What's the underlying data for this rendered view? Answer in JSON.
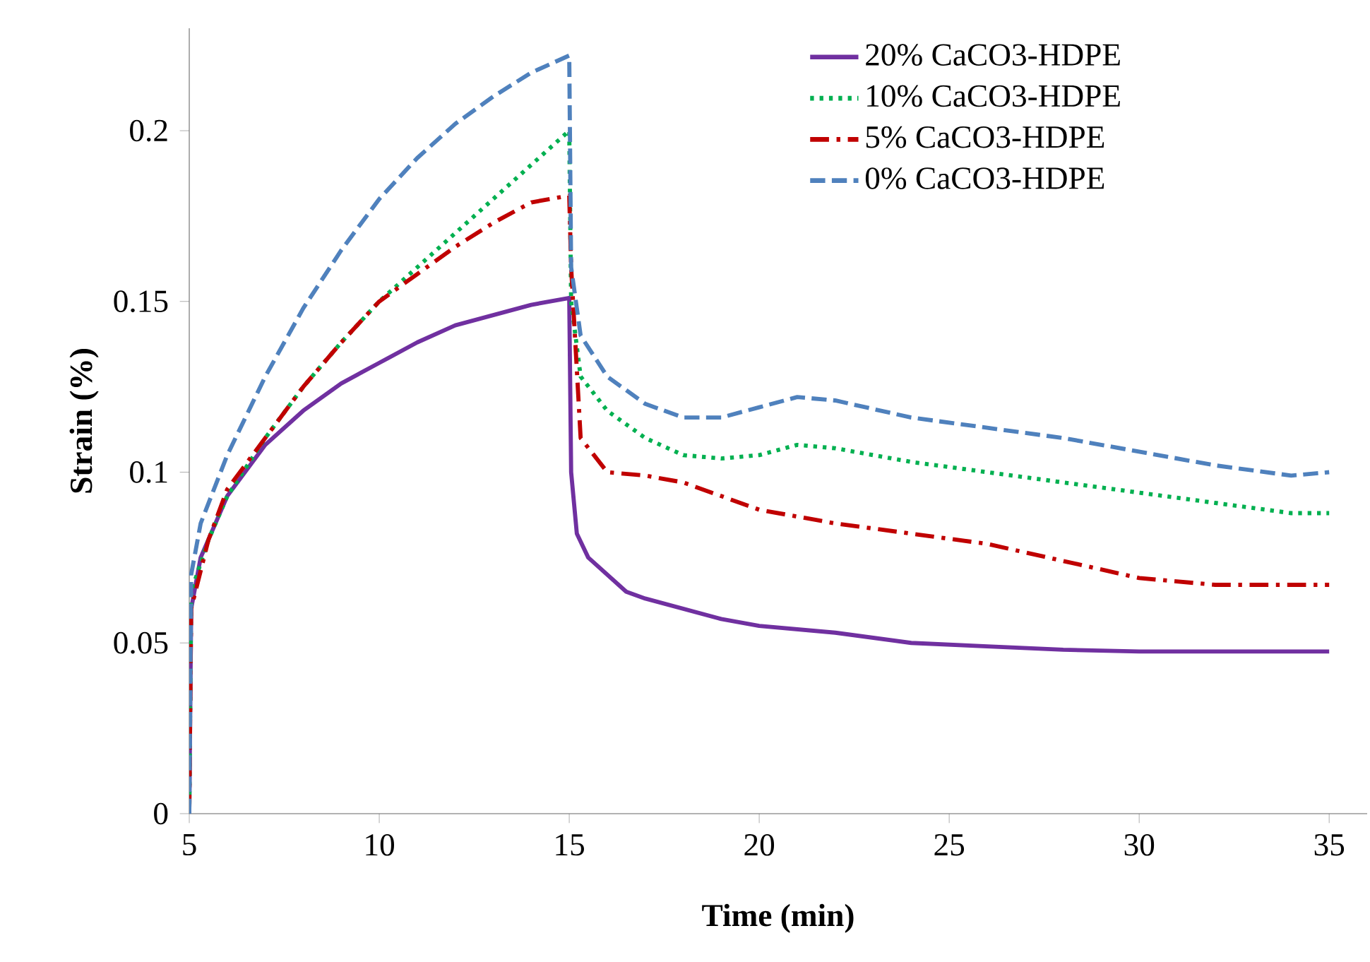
{
  "chart_data": {
    "type": "line",
    "xlabel": "**Time (min)**",
    "ylabel": "**Strain (%)**",
    "xlim": [
      5,
      36
    ],
    "xticks": [
      5,
      10,
      15,
      20,
      25,
      30,
      35
    ],
    "ylim": [
      0,
      0.23
    ],
    "yticks": [
      0,
      0.05,
      0.1,
      0.15,
      0.2
    ],
    "grid": false,
    "legend": "top right",
    "marker": "none",
    "series": [
      {
        "name": "20% CaCO3-HDPE",
        "color": "#7030a0",
        "line_style": "solid",
        "x": [
          5,
          5.05,
          5.3,
          6,
          7,
          8,
          9,
          10,
          11,
          12,
          13,
          14,
          15,
          15.05,
          15.2,
          15.5,
          16,
          16.5,
          17,
          18,
          19,
          20,
          22,
          24,
          26,
          28,
          30,
          32,
          35
        ],
        "values": [
          0,
          0.06,
          0.075,
          0.093,
          0.108,
          0.118,
          0.126,
          0.132,
          0.138,
          0.143,
          0.146,
          0.149,
          0.151,
          0.1,
          0.082,
          0.075,
          0.07,
          0.065,
          0.063,
          0.06,
          0.057,
          0.055,
          0.053,
          0.05,
          0.049,
          0.048,
          0.0475,
          0.0475,
          0.0475
        ]
      },
      {
        "name": "10%  CaCO3-HDPE",
        "color": "#00b050",
        "line_style": "dotted",
        "x": [
          5,
          5.05,
          5.5,
          6,
          7,
          8,
          9,
          10,
          11,
          12,
          13,
          14,
          15,
          15.05,
          15.3,
          16,
          17,
          18,
          19,
          20,
          21,
          22,
          24,
          26,
          28,
          30,
          32,
          34,
          35
        ],
        "values": [
          0,
          0.065,
          0.08,
          0.093,
          0.11,
          0.125,
          0.138,
          0.15,
          0.16,
          0.17,
          0.18,
          0.19,
          0.2,
          0.15,
          0.128,
          0.118,
          0.11,
          0.105,
          0.104,
          0.105,
          0.108,
          0.107,
          0.103,
          0.1,
          0.097,
          0.094,
          0.091,
          0.088,
          0.088
        ]
      },
      {
        "name": "5% CaCO3-HDPE",
        "color": "#c00000",
        "line_style": "dashdotted",
        "x": [
          5,
          5.05,
          5.5,
          6,
          7,
          8,
          9,
          10,
          11,
          12,
          13,
          14,
          15,
          15.05,
          15.3,
          16,
          17,
          18,
          19,
          20,
          22,
          24,
          26,
          28,
          30,
          32,
          35
        ],
        "values": [
          0,
          0.06,
          0.08,
          0.095,
          0.11,
          0.125,
          0.138,
          0.15,
          0.158,
          0.166,
          0.173,
          0.179,
          0.181,
          0.16,
          0.11,
          0.1,
          0.099,
          0.097,
          0.093,
          0.089,
          0.085,
          0.082,
          0.079,
          0.074,
          0.069,
          0.067,
          0.067
        ]
      },
      {
        "name": "0% CaCO3-HDPE",
        "color": "#4f81bd",
        "line_style": "dashed",
        "x": [
          5,
          5.05,
          5.3,
          6,
          7,
          8,
          9,
          10,
          11,
          12,
          13,
          14,
          15,
          15.05,
          15.3,
          16,
          17,
          18,
          19,
          20,
          21,
          22,
          24,
          26,
          28,
          30,
          32,
          34,
          35
        ],
        "values": [
          0,
          0.07,
          0.085,
          0.105,
          0.128,
          0.148,
          0.165,
          0.18,
          0.192,
          0.202,
          0.21,
          0.217,
          0.222,
          0.16,
          0.14,
          0.128,
          0.12,
          0.116,
          0.116,
          0.119,
          0.122,
          0.121,
          0.116,
          0.113,
          0.11,
          0.106,
          0.102,
          0.099,
          0.1
        ]
      }
    ]
  }
}
